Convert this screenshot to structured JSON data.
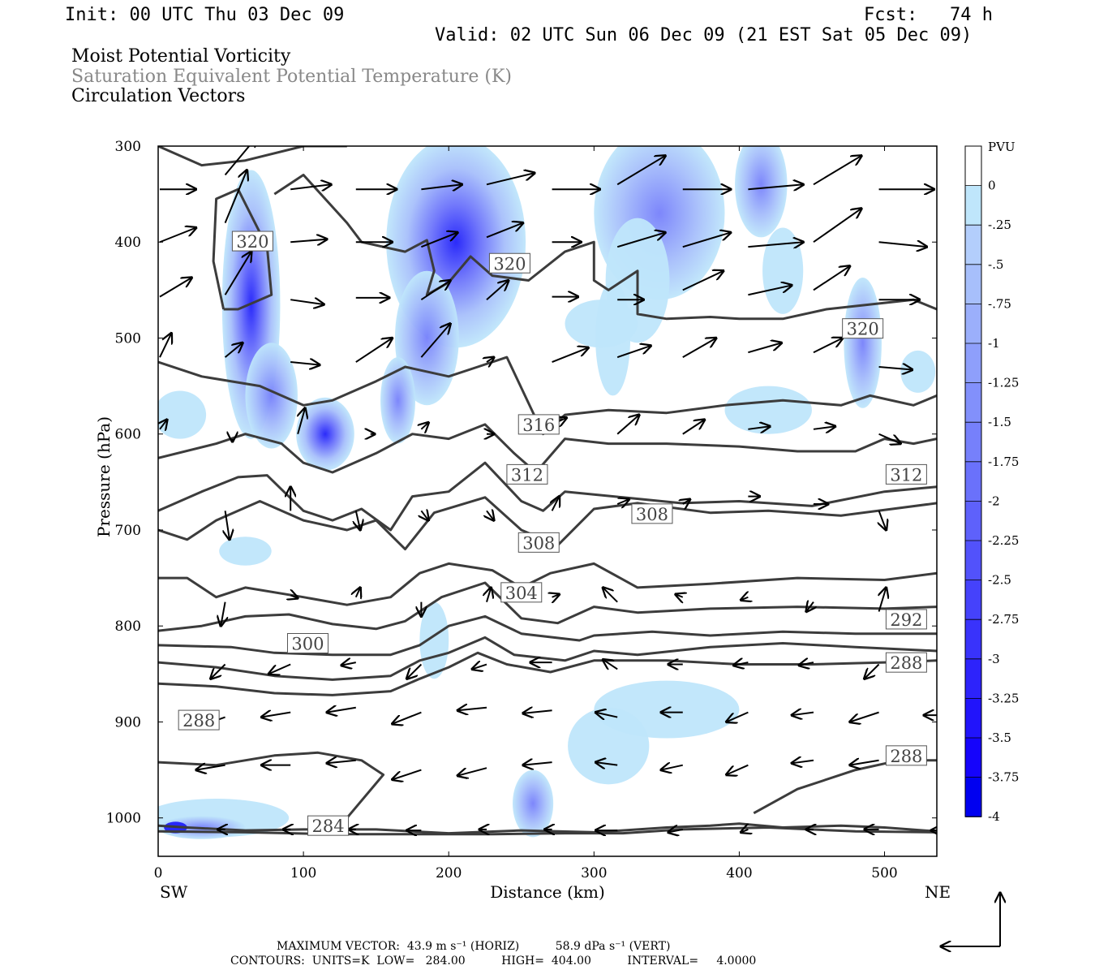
{
  "header": {
    "init": "Init: 00 UTC Thu 03 Dec 09",
    "fcst": "Fcst:   74 h",
    "valid": "Valid: 02 UTC Sun 06 Dec 09 (21 EST Sat 05 Dec 09)"
  },
  "fields": {
    "shaded": "Moist Potential Vorticity",
    "contour": "Saturation Equivalent Potential Temperature (K)",
    "vectors": "Circulation Vectors"
  },
  "colors": {
    "contour": "#3c3c3c",
    "vector": "#000000",
    "shade_min": "#0000ff",
    "shade_light": "#bfe6fb"
  },
  "colorbar": {
    "unit": "PVU",
    "labels": [
      "0",
      "-.25",
      "-.5",
      "-.75",
      "-1",
      "-1.25",
      "-1.5",
      "-1.75",
      "-2",
      "-2.25",
      "-2.5",
      "-2.75",
      "-3",
      "-3.25",
      "-3.5",
      "-3.75",
      "-4"
    ],
    "colors": [
      "#ffffff",
      "#bfe6fb",
      "#b3cefc",
      "#a7bffb",
      "#9baffb",
      "#8e9ffb",
      "#8290fb",
      "#7680fb",
      "#6a71fb",
      "#5e61fb",
      "#5252fb",
      "#4542fb",
      "#3933fb",
      "#2d23fb",
      "#2114fb",
      "#1504fb",
      "#0000f0"
    ]
  },
  "chart_data": {
    "type": "contour",
    "xlabel": "Distance (km)",
    "ylabel": "Pressure (hPa)",
    "xlim": [
      0,
      536
    ],
    "ylim": [
      1040,
      300
    ],
    "x_ticks": [
      "0",
      "100",
      "200",
      "300",
      "400",
      "500"
    ],
    "y_ticks": [
      "300",
      "400",
      "500",
      "600",
      "700",
      "800",
      "900",
      "1000"
    ],
    "left_end_label": "SW",
    "right_end_label": "NE",
    "contour_labels": [
      {
        "text": "320",
        "x": 65,
        "p": 399
      },
      {
        "text": "320",
        "x": 242,
        "p": 422
      },
      {
        "text": "320",
        "x": 485,
        "p": 490
      },
      {
        "text": "316",
        "x": 262,
        "p": 590
      },
      {
        "text": "312",
        "x": 254,
        "p": 642
      },
      {
        "text": "312",
        "x": 515,
        "p": 642
      },
      {
        "text": "308",
        "x": 340,
        "p": 683
      },
      {
        "text": "308",
        "x": 262,
        "p": 713
      },
      {
        "text": "304",
        "x": 250,
        "p": 765
      },
      {
        "text": "300",
        "x": 103,
        "p": 818
      },
      {
        "text": "292",
        "x": 515,
        "p": 793
      },
      {
        "text": "288",
        "x": 515,
        "p": 838
      },
      {
        "text": "288",
        "x": 28,
        "p": 898
      },
      {
        "text": "288",
        "x": 515,
        "p": 935
      },
      {
        "text": "284",
        "x": 117,
        "p": 1008
      }
    ],
    "contour_levels": [
      284,
      288,
      292,
      296,
      300,
      304,
      308,
      312,
      316,
      320
    ],
    "shaded_field": "MPV",
    "pv_min": -4,
    "pv_max": 0
  },
  "footer": {
    "max_vector": "MAXIMUM VECTOR:  43.9 m s⁻¹ (HORIZ)          58.9 dPa s⁻¹ (VERT)",
    "contours": "CONTOURS:  UNITS=K  LOW=   284.00          HIGH=  404.00          INTERVAL=     4.0000"
  }
}
